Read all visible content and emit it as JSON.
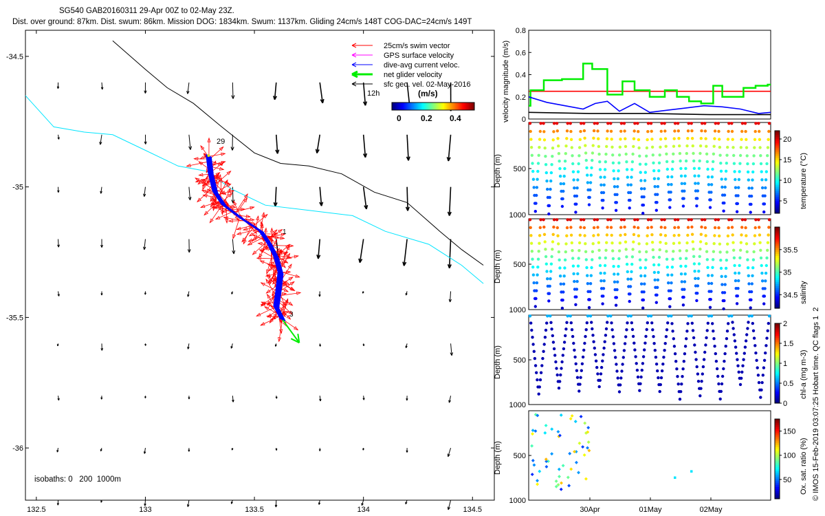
{
  "header": {
    "line1": "SG540 GAB20160311 29-Apr 00Z to 02-May 23Z.",
    "line2": "Dist. over ground: 87km. Dist. swum: 86km. Mission DOG: 1834km. Swum: 1137km. Gliding 24cm/s 148T COG-DAC=24cm/s 149T"
  },
  "footer": {
    "side_text": "© IMOS 15-Feb-2019 03:07:25 Hobart time. QC flags 1  2"
  },
  "colors": {
    "swim": "#ff0000",
    "gps": "#ff00ff",
    "dac": "#0000ff",
    "net": "#00ee00",
    "geo": "#000000",
    "isobath200": "#00e5ff",
    "isobath1000": "#000000"
  },
  "chart_data": [
    {
      "type": "map",
      "xlim": [
        132.45,
        134.6
      ],
      "ylim": [
        -36.2,
        -34.4
      ],
      "xticks": [
        "132.5",
        "133",
        "133.5",
        "134",
        "134.5"
      ],
      "yticks": [
        "-34.5",
        "-35",
        "-35.5",
        "-36"
      ],
      "legend": {
        "entries": [
          "25cm/s swim vector",
          "GPS surface velocity",
          "dive-avg current veloc.",
          "net glider velocity",
          "sfc geo. vel. 02-May-2016"
        ],
        "placement": "top-right"
      },
      "colorbar": {
        "title": "(m/s)",
        "ticks": [
          "0",
          "0.2",
          "0.4"
        ],
        "range": [
          0,
          0.5
        ]
      },
      "annotations": [
        "29",
        "1",
        "3",
        "12h"
      ],
      "isobath_label": "isobaths: 0   200  1000m",
      "track": [
        [
          133.29,
          -34.88
        ],
        [
          133.3,
          -34.95
        ],
        [
          133.32,
          -35.02
        ],
        [
          133.36,
          -35.07
        ],
        [
          133.44,
          -35.12
        ],
        [
          133.53,
          -35.17
        ],
        [
          133.57,
          -35.22
        ],
        [
          133.6,
          -35.27
        ],
        [
          133.62,
          -35.33
        ],
        [
          133.61,
          -35.4
        ],
        [
          133.6,
          -35.46
        ],
        [
          133.63,
          -35.51
        ]
      ],
      "isobath_200": [
        [
          132.45,
          -34.65
        ],
        [
          132.58,
          -34.77
        ],
        [
          132.72,
          -34.79
        ],
        [
          132.85,
          -34.8
        ],
        [
          133.0,
          -34.86
        ],
        [
          133.15,
          -34.92
        ],
        [
          133.28,
          -34.94
        ],
        [
          133.4,
          -35.01
        ],
        [
          133.55,
          -35.07
        ],
        [
          133.75,
          -35.09
        ],
        [
          133.95,
          -35.11
        ],
        [
          134.1,
          -35.17
        ],
        [
          134.3,
          -35.22
        ],
        [
          134.45,
          -35.3
        ],
        [
          134.55,
          -35.37
        ]
      ],
      "isobath_1000": [
        [
          132.85,
          -34.44
        ],
        [
          133.0,
          -34.55
        ],
        [
          133.1,
          -34.62
        ],
        [
          133.22,
          -34.68
        ],
        [
          133.35,
          -34.77
        ],
        [
          133.5,
          -34.87
        ],
        [
          133.62,
          -34.91
        ],
        [
          133.75,
          -34.92
        ],
        [
          133.9,
          -34.95
        ],
        [
          134.05,
          -35.02
        ],
        [
          134.2,
          -35.06
        ],
        [
          134.35,
          -35.17
        ],
        [
          134.45,
          -35.24
        ],
        [
          134.55,
          -35.3
        ]
      ]
    },
    {
      "type": "line",
      "ylabel": "velocity magnitude (m/s)",
      "ylim": [
        0,
        0.8
      ],
      "yticks": [
        "0",
        "0.2",
        "0.4",
        "0.6",
        "0.8"
      ],
      "xlim": [
        0,
        4
      ],
      "series": [
        {
          "name": "25cm/s swim vector",
          "color": "#ff0000",
          "x": [
            0,
            4
          ],
          "y": [
            0.25,
            0.25
          ]
        },
        {
          "name": "net glider velocity",
          "color": "#00ee00",
          "x": [
            0,
            0.03,
            0.03,
            0.25,
            0.25,
            0.55,
            0.55,
            0.9,
            0.9,
            1.05,
            1.05,
            1.3,
            1.3,
            1.55,
            1.55,
            1.75,
            1.75,
            2.0,
            2.0,
            2.25,
            2.25,
            2.45,
            2.45,
            2.65,
            2.65,
            2.85,
            2.85,
            3.05,
            3.05,
            3.2,
            3.2,
            3.55,
            3.55,
            3.75,
            3.75,
            3.95,
            3.95,
            4.0
          ],
          "y": [
            0.12,
            0.12,
            0.26,
            0.26,
            0.35,
            0.35,
            0.36,
            0.36,
            0.5,
            0.5,
            0.45,
            0.45,
            0.22,
            0.22,
            0.34,
            0.34,
            0.26,
            0.26,
            0.2,
            0.2,
            0.26,
            0.26,
            0.2,
            0.2,
            0.16,
            0.16,
            0.14,
            0.14,
            0.3,
            0.3,
            0.2,
            0.2,
            0.28,
            0.28,
            0.3,
            0.3,
            0.31,
            0.31
          ]
        },
        {
          "name": "dive-avg current veloc.",
          "color": "#0000ff",
          "x": [
            0,
            0.3,
            0.6,
            0.9,
            1.1,
            1.3,
            1.5,
            1.75,
            2.0,
            2.3,
            2.6,
            2.9,
            3.2,
            3.5,
            3.8,
            4.0
          ],
          "y": [
            0.2,
            0.15,
            0.12,
            0.09,
            0.14,
            0.16,
            0.07,
            0.14,
            0.06,
            0.08,
            0.1,
            0.12,
            0.11,
            0.09,
            0.05,
            0.06
          ]
        },
        {
          "name": "sfc geo. vel. 02-May-2016",
          "color": "#000000",
          "x": [
            0,
            1,
            2,
            3,
            4
          ],
          "y": [
            0.06,
            0.05,
            0.05,
            0.04,
            0.04
          ]
        }
      ]
    },
    {
      "type": "scatter",
      "ylabel": "Depth (m)",
      "ylim": [
        0,
        1000
      ],
      "yticks": [
        "500",
        "1000"
      ],
      "color_label": "temperature (°C)",
      "color_ticks": [
        "5",
        "10",
        "15",
        "20"
      ],
      "color_range": [
        2,
        22
      ],
      "dives": 18
    },
    {
      "type": "scatter",
      "ylabel": "Depth (m)",
      "ylim": [
        0,
        1000
      ],
      "yticks": [
        "500",
        "1000"
      ],
      "color_label": "salinity",
      "color_ticks": [
        "34.5",
        "35",
        "35.5"
      ],
      "color_range": [
        34.2,
        36.0
      ],
      "dives": 18
    },
    {
      "type": "scatter",
      "ylabel": "Depth (m)",
      "ylim": [
        0,
        1000
      ],
      "yticks": [
        "500",
        "1000"
      ],
      "color_label": "chl-a (mg m-3)",
      "color_ticks": [
        "0",
        "0.5",
        "1",
        "1.5",
        "2"
      ],
      "color_range": [
        0,
        2
      ],
      "dives": 12
    },
    {
      "type": "scatter",
      "ylabel": "Depth (m)",
      "ylim": [
        0,
        1000
      ],
      "yticks": [
        "500",
        "1000"
      ],
      "color_label": "Ox. sat. ratio (%)",
      "color_ticks": [
        "50",
        "100",
        "150"
      ],
      "color_range": [
        10,
        175
      ],
      "xticks": [
        "30Apr",
        "01May",
        "02May"
      ]
    }
  ]
}
